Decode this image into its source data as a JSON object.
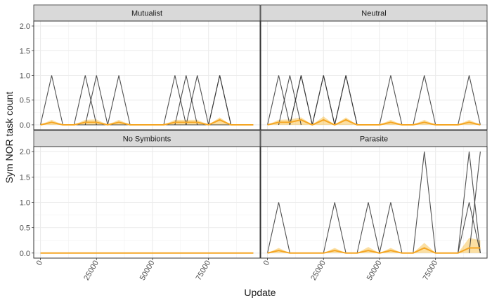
{
  "chart_data": {
    "type": "line",
    "xlabel": "Update",
    "ylabel": "Sym NOR task count",
    "xlim": [
      -3000,
      98000
    ],
    "ylim": [
      -0.1,
      2.1
    ],
    "x_ticks": [
      0,
      25000,
      50000,
      75000
    ],
    "x_tick_labels": [
      "0",
      "25000",
      "50000",
      "75000"
    ],
    "y_ticks": [
      0,
      0.5,
      1,
      1.5,
      2
    ],
    "y_tick_labels": [
      "0.0",
      "0.5",
      "1.0",
      "1.5",
      "2.0"
    ],
    "grid": true,
    "panels": [
      {
        "title": "Mutualist",
        "replicates": [
          {
            "x": [
              0,
              5000,
              10000,
              95000
            ],
            "y": [
              0,
              1,
              0,
              0
            ]
          },
          {
            "x": [
              15000,
              20000,
              25000
            ],
            "y": [
              0,
              1,
              0
            ]
          },
          {
            "x": [
              20000,
              25000,
              30000
            ],
            "y": [
              0,
              1,
              0
            ]
          },
          {
            "x": [
              30000,
              35000,
              40000
            ],
            "y": [
              0,
              1,
              0
            ]
          },
          {
            "x": [
              55000,
              60000,
              65000
            ],
            "y": [
              0,
              1,
              0
            ]
          },
          {
            "x": [
              60000,
              65000,
              70000
            ],
            "y": [
              0,
              1,
              0
            ]
          },
          {
            "x": [
              65000,
              70000,
              75000
            ],
            "y": [
              0,
              1,
              0
            ]
          },
          {
            "x": [
              75000,
              80000,
              85000
            ],
            "y": [
              0,
              1,
              0
            ]
          },
          {
            "x": [
              75000,
              80000,
              85000
            ],
            "y": [
              0,
              1,
              0
            ]
          }
        ],
        "mean": {
          "x": [
            0,
            5000,
            10000,
            15000,
            20000,
            25000,
            30000,
            35000,
            40000,
            45000,
            50000,
            55000,
            60000,
            65000,
            70000,
            75000,
            80000,
            85000,
            90000,
            95000
          ],
          "y": [
            0,
            0.05,
            0,
            0,
            0.05,
            0.05,
            0,
            0.05,
            0,
            0,
            0,
            0,
            0.05,
            0.05,
            0.05,
            0,
            0.1,
            0,
            0,
            0
          ]
        },
        "ci_upper": [
          0,
          0.1,
          0,
          0,
          0.1,
          0.11,
          0,
          0.1,
          0,
          0,
          0,
          0,
          0.1,
          0.1,
          0.1,
          0,
          0.15,
          0,
          0,
          0
        ]
      },
      {
        "title": "Neutral",
        "replicates": [
          {
            "x": [
              0,
              5000,
              10000
            ],
            "y": [
              0,
              1,
              0
            ]
          },
          {
            "x": [
              5000,
              10000,
              15000
            ],
            "y": [
              0,
              1,
              0
            ]
          },
          {
            "x": [
              10000,
              15000,
              20000
            ],
            "y": [
              0,
              1,
              0
            ]
          },
          {
            "x": [
              10000,
              15000,
              20000
            ],
            "y": [
              0,
              1,
              0
            ]
          },
          {
            "x": [
              20000,
              25000,
              30000
            ],
            "y": [
              0,
              1,
              0
            ]
          },
          {
            "x": [
              20000,
              25000,
              30000
            ],
            "y": [
              0,
              1,
              0
            ]
          },
          {
            "x": [
              30000,
              35000,
              40000
            ],
            "y": [
              0,
              1,
              0
            ]
          },
          {
            "x": [
              30000,
              35000,
              40000
            ],
            "y": [
              0,
              1,
              0
            ]
          },
          {
            "x": [
              50000,
              55000,
              60000
            ],
            "y": [
              0,
              1,
              0
            ]
          },
          {
            "x": [
              65000,
              70000,
              75000
            ],
            "y": [
              0,
              1,
              0
            ]
          },
          {
            "x": [
              85000,
              90000,
              95000
            ],
            "y": [
              0,
              1,
              0
            ]
          }
        ],
        "mean": {
          "x": [
            0,
            5000,
            10000,
            15000,
            20000,
            25000,
            30000,
            35000,
            40000,
            45000,
            50000,
            55000,
            60000,
            65000,
            70000,
            75000,
            80000,
            85000,
            90000,
            95000
          ],
          "y": [
            0,
            0.05,
            0.05,
            0.1,
            0,
            0.1,
            0,
            0.1,
            0,
            0,
            0,
            0.05,
            0,
            0,
            0.05,
            0,
            0,
            0,
            0.05,
            0
          ]
        },
        "ci_upper": [
          0,
          0.1,
          0.11,
          0.15,
          0,
          0.17,
          0,
          0.15,
          0,
          0,
          0,
          0.1,
          0,
          0,
          0.1,
          0,
          0,
          0,
          0.1,
          0
        ]
      },
      {
        "title": "No Symbionts",
        "replicates": [
          {
            "x": [
              0,
              95000
            ],
            "y": [
              0,
              0
            ]
          }
        ],
        "mean": {
          "x": [
            0,
            95000
          ],
          "y": [
            0,
            0
          ]
        },
        "ci_upper": [
          0,
          0
        ]
      },
      {
        "title": "Parasite",
        "replicates": [
          {
            "x": [
              0,
              5000,
              10000
            ],
            "y": [
              0,
              1,
              0
            ]
          },
          {
            "x": [
              25000,
              30000,
              35000
            ],
            "y": [
              0,
              1,
              0
            ]
          },
          {
            "x": [
              40000,
              45000,
              50000
            ],
            "y": [
              0,
              1,
              0
            ]
          },
          {
            "x": [
              50000,
              55000,
              60000
            ],
            "y": [
              0,
              1,
              0
            ]
          },
          {
            "x": [
              65000,
              70000,
              75000
            ],
            "y": [
              0,
              2,
              0
            ]
          },
          {
            "x": [
              85000,
              90000,
              95000
            ],
            "y": [
              0,
              2,
              0
            ]
          },
          {
            "x": [
              85000,
              90000,
              95000
            ],
            "y": [
              0,
              1,
              0
            ]
          },
          {
            "x": [
              90000,
              95000
            ],
            "y": [
              0,
              2
            ]
          }
        ],
        "mean": {
          "x": [
            0,
            5000,
            10000,
            15000,
            20000,
            25000,
            30000,
            35000,
            40000,
            45000,
            50000,
            55000,
            60000,
            65000,
            70000,
            75000,
            80000,
            85000,
            90000,
            95000
          ],
          "y": [
            0,
            0.05,
            0,
            0,
            0,
            0,
            0.05,
            0,
            0,
            0.05,
            0,
            0.05,
            0,
            0,
            0.1,
            0,
            0,
            0,
            0.1,
            0.1
          ]
        },
        "ci_upper": [
          0,
          0.1,
          0,
          0,
          0,
          0,
          0.1,
          0,
          0,
          0.12,
          0,
          0.1,
          0,
          0,
          0.2,
          0,
          0,
          0,
          0.3,
          0.25
        ]
      }
    ],
    "colors": {
      "replicate_line": "#333333",
      "mean_line": "#f5a623",
      "ci_band": "#f7b733",
      "strip_fill": "#d9d9d9",
      "grid": "#ebebeb",
      "panel_border": "#333333",
      "text": "#1a1a1a",
      "tick_text": "#4d4d4d"
    }
  }
}
